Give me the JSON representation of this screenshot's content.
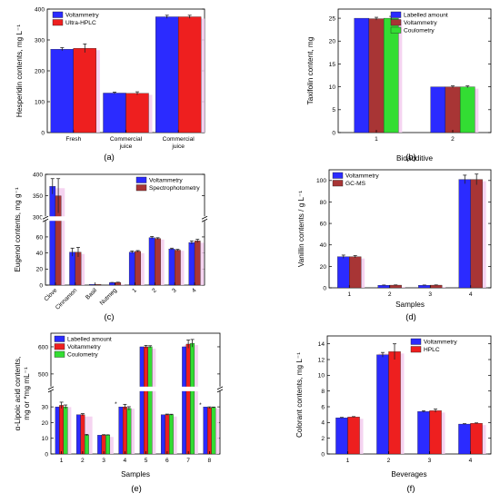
{
  "colors": {
    "blue": "#2b2bff",
    "red": "#ee1f1f",
    "green": "#33dd33",
    "darkred": "#a83535",
    "highlight": "#f3cdee"
  },
  "chart_data": [
    {
      "id": "a",
      "panel_label": "(a)",
      "type": "bar",
      "ylabel": "Hesperidin contents, mg L⁻¹",
      "xlabel": "",
      "ylim": [
        0,
        400
      ],
      "yticks": [
        0,
        100,
        200,
        300,
        400
      ],
      "categories": [
        "Fresh",
        "Commercial juice",
        "Commercial juice"
      ],
      "category_labels": [
        [
          "Fresh"
        ],
        [
          "Commercial",
          "juice"
        ],
        [
          "Commercial",
          "juice"
        ]
      ],
      "series": [
        {
          "name": "Voltammetry",
          "color": "blue",
          "values": [
            270,
            128,
            375
          ],
          "errors": [
            5,
            3,
            5
          ]
        },
        {
          "name": "Ultra-HPLC",
          "color": "red",
          "values": [
            273,
            127,
            375
          ],
          "errors": [
            14,
            5,
            5
          ]
        }
      ],
      "legend": "top-left"
    },
    {
      "id": "b",
      "panel_label": "(b)",
      "type": "bar",
      "ylabel": "Taxifolin content, mg",
      "xlabel": "Bioadditive",
      "ylim": [
        0,
        27
      ],
      "yticks": [
        0,
        5,
        10,
        15,
        20,
        25
      ],
      "categories": [
        "1",
        "2"
      ],
      "series": [
        {
          "name": "Labelled amount",
          "color": "blue",
          "values": [
            25,
            10
          ],
          "errors": [
            0,
            0
          ]
        },
        {
          "name": "Voltammetry",
          "color": "darkred",
          "values": [
            24.9,
            10
          ],
          "errors": [
            0.3,
            0.2
          ]
        },
        {
          "name": "Coulometry",
          "color": "green",
          "values": [
            25,
            10
          ],
          "errors": [
            0.4,
            0.2
          ]
        }
      ],
      "legend": "top-right"
    },
    {
      "id": "c",
      "panel_label": "(c)",
      "type": "bar",
      "ylabel": "Eugenol contents, mg g⁻¹",
      "xlabel": "",
      "broken_axis": {
        "lower": [
          0,
          80
        ],
        "upper": [
          300,
          400
        ]
      },
      "yticks": [
        0,
        20,
        40,
        60,
        300,
        350,
        400
      ],
      "categories": [
        "Clove",
        "Cinnamon",
        "Basil",
        "Nutmeg",
        "1",
        "2",
        "3",
        "4"
      ],
      "series": [
        {
          "name": "Voltammetry",
          "color": "blue",
          "values": [
            372,
            41,
            0.9,
            3,
            41,
            59,
            45,
            53
          ],
          "errors": [
            18,
            5,
            0,
            0.3,
            1.5,
            1.5,
            1,
            2
          ]
        },
        {
          "name": "Spectrophotometry",
          "color": "darkred",
          "values": [
            350,
            41,
            0.9,
            3.3,
            42,
            58,
            43.5,
            55
          ],
          "errors": [
            40,
            6,
            0,
            0.3,
            1,
            1,
            1,
            2
          ]
        }
      ],
      "legend": "top-right"
    },
    {
      "id": "d",
      "panel_label": "(d)",
      "type": "bar",
      "ylabel": "Vanillin contents / g L⁻¹",
      "xlabel": "Samples",
      "ylim": [
        0,
        110
      ],
      "yticks": [
        0,
        20,
        40,
        60,
        80,
        100
      ],
      "categories": [
        "1",
        "2",
        "3",
        "4"
      ],
      "series": [
        {
          "name": "Voltammetry",
          "color": "blue",
          "values": [
            29,
            2.4,
            2.4,
            101
          ],
          "errors": [
            1.5,
            0.2,
            0.2,
            4
          ]
        },
        {
          "name": "GC-MS",
          "color": "darkred",
          "values": [
            29,
            2.5,
            2.5,
            101
          ],
          "errors": [
            1,
            0.2,
            0.2,
            5
          ]
        }
      ],
      "legend": "top-left"
    },
    {
      "id": "e",
      "panel_label": "(e)",
      "type": "bar",
      "ylabel": "α-Lipoic acid contents,",
      "ylabel2": "mg or *mg mL⁻¹",
      "xlabel": "Samples",
      "broken_axis": {
        "lower": [
          0,
          40
        ],
        "upper": [
          450,
          650
        ]
      },
      "yticks": [
        0,
        10,
        20,
        30,
        500,
        600
      ],
      "categories": [
        "1",
        "2",
        "3",
        "4",
        "5",
        "6",
        "7",
        "8"
      ],
      "series": [
        {
          "name": "Labelled amount",
          "color": "blue",
          "values": [
            30,
            25,
            12,
            30,
            600,
            25,
            600,
            30
          ],
          "errors": [
            0,
            0,
            0,
            0,
            0,
            0,
            0,
            0
          ]
        },
        {
          "name": "Voltammetry",
          "color": "red",
          "values": [
            31,
            25,
            12,
            30,
            600,
            25,
            610,
            29.5
          ],
          "errors": [
            2,
            0.7,
            0.3,
            1.6,
            5,
            0.4,
            15,
            0.5
          ]
        },
        {
          "name": "Coulometry",
          "color": "green",
          "values": [
            30,
            12,
            12,
            29,
            600,
            25,
            613,
            29.6
          ],
          "errors": [
            1.2,
            0.5,
            0.2,
            1.1,
            4,
            0.3,
            14,
            0.3
          ]
        }
      ],
      "asterisks": [
        4,
        8
      ],
      "legend": "top-left"
    },
    {
      "id": "f",
      "panel_label": "(f)",
      "type": "bar",
      "ylabel": "Colorant contents, mg L⁻¹",
      "xlabel": "Beverages",
      "ylim": [
        0,
        15
      ],
      "yticks": [
        0,
        2,
        4,
        6,
        8,
        10,
        12,
        14
      ],
      "categories": [
        "1",
        "2",
        "3",
        "4"
      ],
      "series": [
        {
          "name": "Voltammetry",
          "color": "blue",
          "values": [
            4.6,
            12.6,
            5.4,
            3.8
          ],
          "errors": [
            0.05,
            0.3,
            0.1,
            0.05
          ]
        },
        {
          "name": "HPLC",
          "color": "red",
          "values": [
            4.7,
            13.0,
            5.5,
            3.9
          ],
          "errors": [
            0.05,
            1.0,
            0.2,
            0.05
          ]
        }
      ],
      "legend": "top-right"
    }
  ]
}
